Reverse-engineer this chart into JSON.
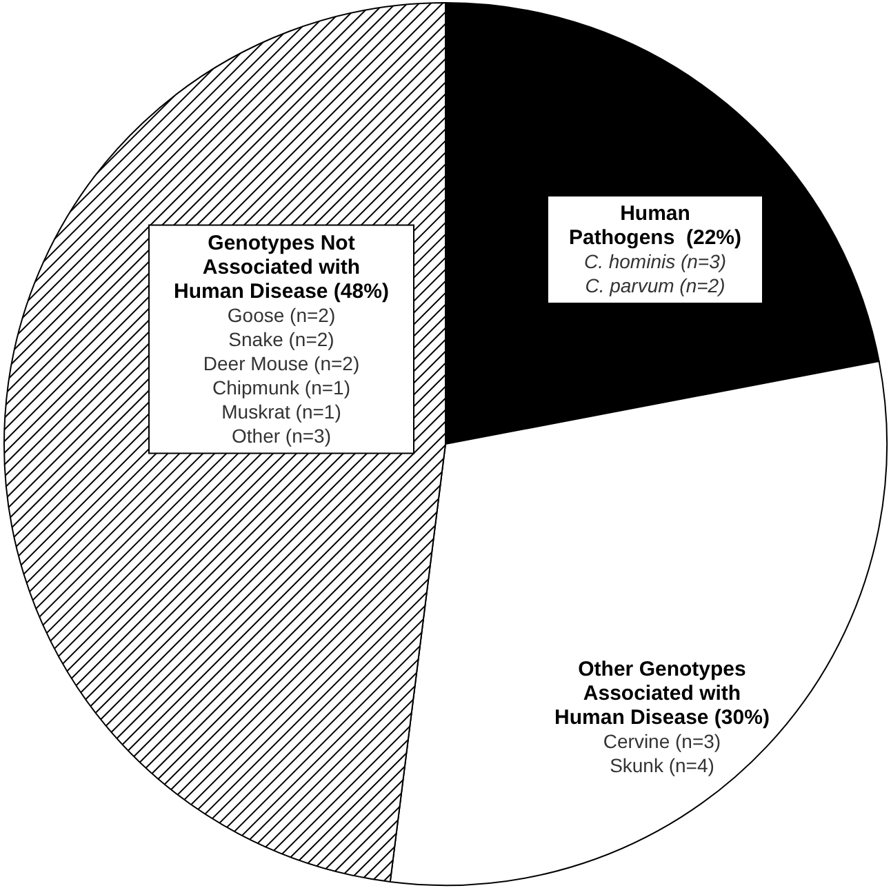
{
  "chart_data": {
    "type": "pie",
    "categories": [
      "Human\nPathogens  (22%)",
      "Other Genotypes\nAssociated with\nHuman Disease (30%)",
      "Genotypes Not\nAssociated with\nHuman Disease (48%)"
    ],
    "values": [
      22,
      30,
      48
    ],
    "colors": [
      "#000000",
      "#ffffff",
      "#000000"
    ],
    "annotations": [
      "C. hominis (n=3)\nC. parvum (n=2)",
      "Cervine (n=3)\nSkunk (n=4)",
      "Goose (n=2)\nSnake (n=2)\nDeer Mouse (n=2)\nChipmunk (n=1)\nMuskrat (n=1)\nOther (n=3)"
    ]
  }
}
